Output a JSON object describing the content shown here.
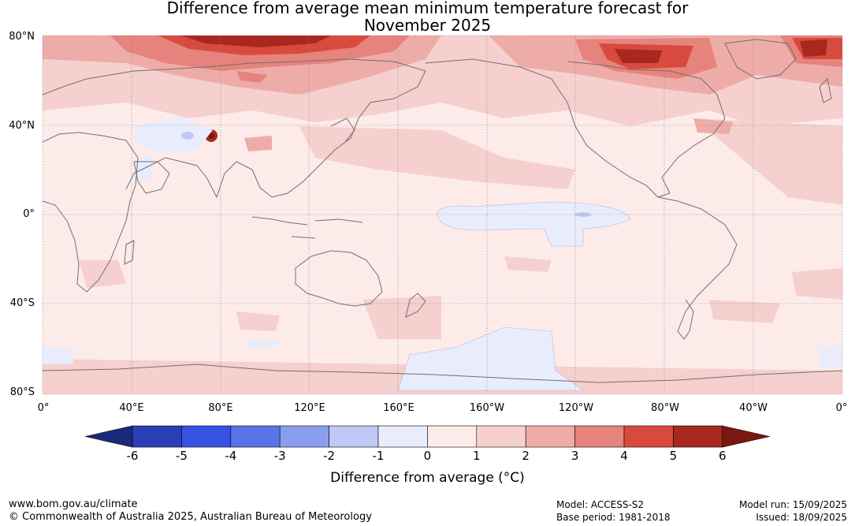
{
  "title_line1": "Difference from average mean minimum temperature forecast for",
  "title_line2": "November 2025",
  "lat_labels": [
    "80°N",
    "40°N",
    "0°",
    "40°S",
    "80°S"
  ],
  "lon_labels": [
    "0°",
    "40°E",
    "80°E",
    "120°E",
    "160°E",
    "160°W",
    "120°W",
    "80°W",
    "40°W",
    "0°"
  ],
  "colorbar": {
    "ticks": [
      "-6",
      "-5",
      "-4",
      "-3",
      "-2",
      "-1",
      "0",
      "1",
      "2",
      "3",
      "4",
      "5",
      "6"
    ],
    "colors": [
      "#1a2a7a",
      "#2a3fb5",
      "#3552e0",
      "#5a73e8",
      "#8a9ef0",
      "#c0c9f5",
      "#e9ecfb",
      "#fdebea",
      "#f5d0ce",
      "#eeaca8",
      "#e6837c",
      "#d94a3e",
      "#a8281f",
      "#7a1812"
    ],
    "label": "Difference from average (°C)"
  },
  "footer": {
    "url": "www.bom.gov.au/climate",
    "copyright": "© Commonwealth of Australia 2025, Australian Bureau of Meteorology",
    "model": "Model: ACCESS-S2",
    "base_period": "Base period: 1981-2018",
    "model_run": "Model run: 15/09/2025",
    "issued": "Issued: 18/09/2025"
  }
}
